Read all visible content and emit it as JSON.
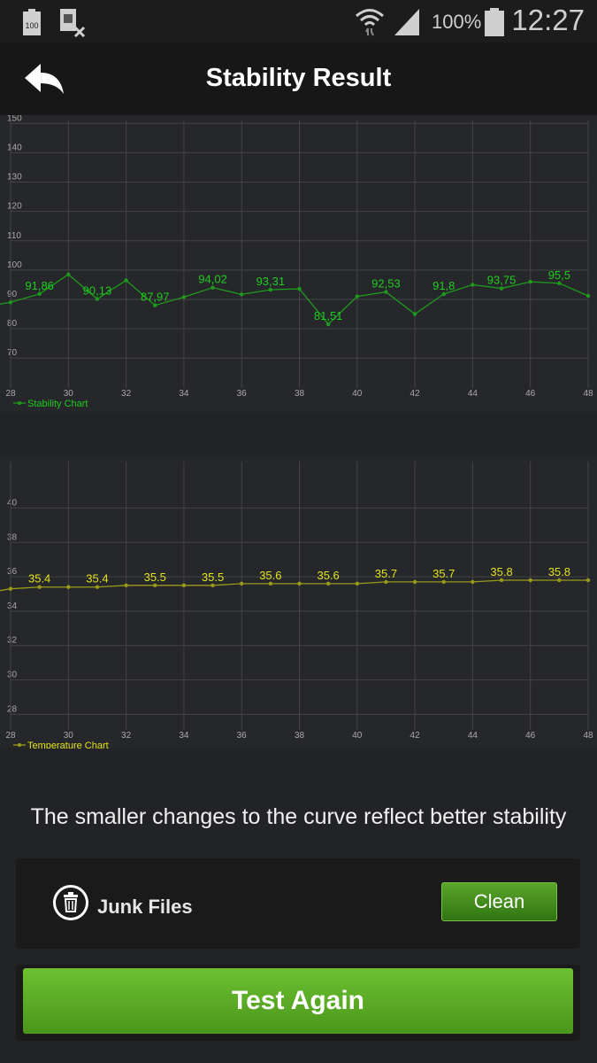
{
  "status_bar": {
    "battery_badge": "100",
    "battery_percent": "100%",
    "time": "12:27"
  },
  "header": {
    "title": "Stability Result"
  },
  "chart_data": [
    {
      "type": "line",
      "legend": "Stability Chart",
      "color": "#1fcc1f",
      "x": [
        28,
        29,
        30,
        31,
        32,
        33,
        34,
        35,
        36,
        37,
        38,
        39,
        40,
        41,
        42,
        43,
        44,
        45,
        46,
        47,
        48
      ],
      "values": [
        89,
        91.86,
        98.5,
        90.13,
        96.5,
        87.97,
        90.8,
        94.02,
        91.7,
        93.31,
        93.6,
        81.51,
        91,
        92.53,
        85,
        91.8,
        95,
        93.75,
        96,
        95.5,
        91.2
      ],
      "labels": [
        "",
        "91,86",
        "",
        "90,13",
        "",
        "87,97",
        "",
        "94,02",
        "",
        "93,31",
        "",
        "81,51",
        "",
        "92,53",
        "",
        "91,8",
        "",
        "93,75",
        "",
        "95,5",
        ""
      ],
      "xticks": [
        28,
        30,
        32,
        34,
        36,
        38,
        40,
        42,
        44,
        46,
        48
      ],
      "yticks": [
        70,
        80,
        90,
        100,
        110,
        120,
        130,
        140,
        150
      ],
      "ylim": [
        61,
        151
      ],
      "xlim": [
        28,
        48
      ],
      "grid": true,
      "legend_position": "bottom-left"
    },
    {
      "type": "line",
      "legend": "Temperature Chart",
      "color": "#e3e31a",
      "x": [
        28,
        29,
        30,
        31,
        32,
        33,
        34,
        35,
        36,
        37,
        38,
        39,
        40,
        41,
        42,
        43,
        44,
        45,
        46,
        47,
        48
      ],
      "values": [
        35.3,
        35.4,
        35.4,
        35.4,
        35.5,
        35.5,
        35.5,
        35.5,
        35.6,
        35.6,
        35.6,
        35.6,
        35.6,
        35.7,
        35.7,
        35.7,
        35.7,
        35.8,
        35.8,
        35.8,
        35.8
      ],
      "labels": [
        "",
        "35.4",
        "",
        "35.4",
        "",
        "35.5",
        "",
        "35.5",
        "",
        "35.6",
        "",
        "35.6",
        "",
        "35.7",
        "",
        "35.7",
        "",
        "35.8",
        "",
        "35.8",
        ""
      ],
      "xticks": [
        28,
        30,
        32,
        34,
        36,
        38,
        40,
        42,
        44,
        46,
        48
      ],
      "yticks": [
        28,
        30,
        32,
        34,
        36,
        38,
        40
      ],
      "ylim": [
        27.3,
        42.7
      ],
      "xlim": [
        28,
        48
      ],
      "grid": true,
      "legend_position": "bottom-left"
    }
  ],
  "note": "The smaller changes to the curve reflect better stability",
  "junk": {
    "label": "Junk Files",
    "button": "Clean"
  },
  "test_again": "Test Again"
}
